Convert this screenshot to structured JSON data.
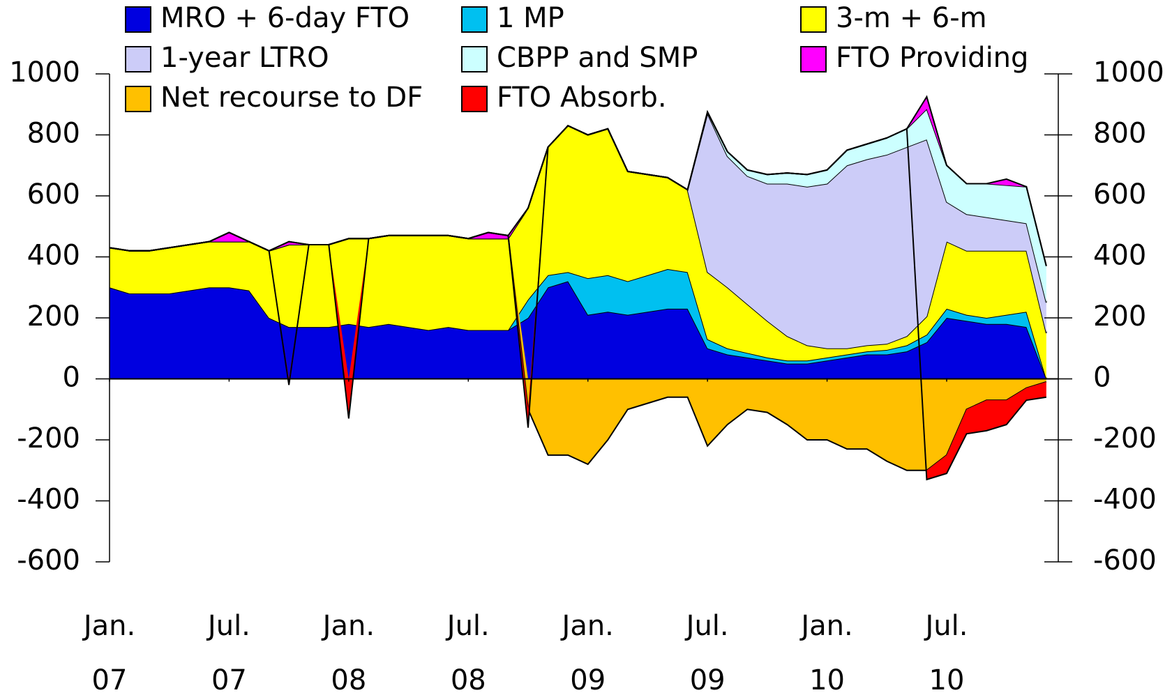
{
  "chart_data": {
    "type": "area",
    "stacked": true,
    "x": [
      0,
      1,
      2,
      3,
      4,
      5,
      6,
      7,
      8,
      9,
      10,
      11,
      12,
      13,
      14,
      15,
      16,
      17,
      18,
      19,
      20,
      21,
      22,
      23,
      24,
      25,
      26,
      27,
      28,
      29,
      30,
      31,
      32,
      33,
      34,
      35,
      36,
      37,
      38,
      39,
      40,
      41,
      42,
      43,
      44,
      45,
      46,
      47
    ],
    "xlim": [
      0,
      47.6
    ],
    "xticks": [
      {
        "value": 0,
        "label": "Jan.",
        "year": "07"
      },
      {
        "value": 6,
        "label": "Jul.",
        "year": "07"
      },
      {
        "value": 12,
        "label": "Jan.",
        "year": "08"
      },
      {
        "value": 18,
        "label": "Jul.",
        "year": "08"
      },
      {
        "value": 24,
        "label": "Jan.",
        "year": "09"
      },
      {
        "value": 30,
        "label": "Jul.",
        "year": "09"
      },
      {
        "value": 36,
        "label": "Jan.",
        "year": "10"
      },
      {
        "value": 42,
        "label": "Jul.",
        "year": "10"
      }
    ],
    "ylim": [
      -600,
      1000
    ],
    "yticks": [
      -600,
      -400,
      -200,
      0,
      200,
      400,
      600,
      800,
      1000
    ],
    "series": [
      {
        "name": "MRO + 6-day FTO",
        "color": "#0000e0",
        "values": [
          300,
          280,
          280,
          280,
          290,
          300,
          300,
          290,
          200,
          170,
          170,
          170,
          180,
          170,
          180,
          170,
          160,
          170,
          160,
          160,
          160,
          200,
          300,
          320,
          210,
          220,
          210,
          220,
          230,
          230,
          100,
          80,
          70,
          60,
          50,
          50,
          60,
          70,
          80,
          80,
          90,
          120,
          200,
          190,
          180,
          180,
          170,
          0
        ]
      },
      {
        "name": "1 MP",
        "color": "#00c0f0",
        "values": [
          0,
          0,
          0,
          0,
          0,
          0,
          0,
          0,
          0,
          0,
          0,
          0,
          0,
          0,
          0,
          0,
          0,
          0,
          0,
          0,
          0,
          60,
          40,
          30,
          120,
          120,
          110,
          120,
          130,
          120,
          30,
          20,
          15,
          10,
          10,
          10,
          10,
          10,
          10,
          15,
          20,
          25,
          30,
          20,
          20,
          30,
          50,
          0
        ]
      },
      {
        "name": "3-m + 6-m",
        "color": "#ffff00",
        "values": [
          130,
          140,
          140,
          150,
          150,
          150,
          150,
          160,
          220,
          270,
          270,
          270,
          280,
          290,
          290,
          300,
          310,
          300,
          300,
          300,
          300,
          300,
          420,
          480,
          470,
          480,
          360,
          330,
          300,
          270,
          220,
          200,
          160,
          120,
          80,
          50,
          30,
          20,
          20,
          20,
          30,
          60,
          220,
          210,
          220,
          210,
          200,
          150
        ]
      },
      {
        "name": "1-year LTRO",
        "color": "#ccccf8",
        "values": [
          0,
          0,
          0,
          0,
          0,
          0,
          0,
          0,
          0,
          0,
          0,
          0,
          0,
          0,
          0,
          0,
          0,
          0,
          0,
          0,
          0,
          0,
          0,
          0,
          0,
          0,
          0,
          0,
          0,
          0,
          520,
          430,
          420,
          450,
          500,
          520,
          540,
          600,
          610,
          620,
          620,
          580,
          130,
          120,
          110,
          100,
          90,
          100
        ]
      },
      {
        "name": "CBPP and SMP",
        "color": "#ccffff",
        "values": [
          0,
          0,
          0,
          0,
          0,
          0,
          0,
          0,
          0,
          0,
          0,
          0,
          0,
          0,
          0,
          0,
          0,
          0,
          0,
          0,
          0,
          0,
          0,
          0,
          0,
          0,
          0,
          0,
          0,
          0,
          5,
          15,
          20,
          30,
          35,
          40,
          45,
          50,
          50,
          55,
          60,
          100,
          120,
          100,
          110,
          115,
          120,
          120
        ]
      },
      {
        "name": "FTO Providing",
        "color": "#ff00ff",
        "values": [
          0,
          0,
          0,
          0,
          0,
          0,
          30,
          0,
          0,
          10,
          0,
          0,
          0,
          0,
          0,
          0,
          0,
          0,
          0,
          20,
          10,
          0,
          0,
          0,
          0,
          0,
          0,
          0,
          0,
          0,
          0,
          0,
          0,
          0,
          0,
          0,
          0,
          0,
          0,
          0,
          0,
          40,
          0,
          0,
          0,
          20,
          0,
          0
        ]
      },
      {
        "name": "Net recourse to DF",
        "color": "#ffc000",
        "values": [
          0,
          0,
          0,
          0,
          0,
          0,
          0,
          0,
          0,
          0,
          0,
          0,
          0,
          0,
          0,
          0,
          0,
          0,
          0,
          0,
          0,
          -100,
          -250,
          -250,
          -280,
          -200,
          -100,
          -80,
          -60,
          -60,
          -220,
          -150,
          -100,
          -110,
          -150,
          -200,
          -200,
          -230,
          -230,
          -270,
          -300,
          -300,
          -250,
          -100,
          -70,
          -70,
          -30,
          -10
        ]
      },
      {
        "name": "FTO Absorb.",
        "color": "#ff0000",
        "values": [
          0,
          0,
          0,
          0,
          0,
          0,
          0,
          0,
          0,
          -20,
          0,
          0,
          -130,
          0,
          0,
          0,
          0,
          0,
          0,
          0,
          0,
          -60,
          0,
          0,
          0,
          0,
          0,
          0,
          0,
          0,
          0,
          0,
          0,
          0,
          0,
          0,
          0,
          0,
          0,
          0,
          0,
          -30,
          -60,
          -80,
          -100,
          -80,
          -40,
          -50
        ]
      }
    ]
  }
}
